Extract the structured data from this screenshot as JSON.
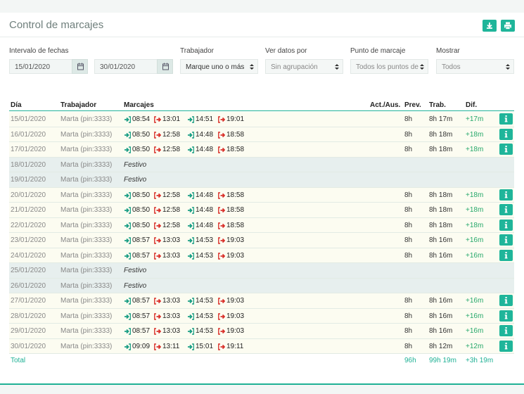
{
  "header": {
    "title": "Control de marcajes"
  },
  "filters": {
    "date_range": {
      "label": "Intervalo de fechas",
      "from": "15/01/2020",
      "to": "30/01/2020"
    },
    "selects": [
      {
        "label": "Trabajador",
        "value": "Marque uno o más"
      },
      {
        "label": "Ver datos por",
        "value": "Sin agrupación"
      },
      {
        "label": "Punto de marcaje",
        "value": "Todos los puntos de"
      },
      {
        "label": "Mostrar",
        "value": "Todos"
      }
    ]
  },
  "table": {
    "columns": [
      "Día",
      "Trabajador",
      "Marcajes",
      "Act./Aus.",
      "Prev.",
      "Trab.",
      "Dif."
    ],
    "rows": [
      {
        "date": "15/01/2020",
        "worker": "Marta (pin:3333)",
        "punches": [
          "08:54",
          "13:01",
          "14:51",
          "19:01"
        ],
        "prev": "8h",
        "trab": "8h 17m",
        "dif": "+17m"
      },
      {
        "date": "16/01/2020",
        "worker": "Marta (pin:3333)",
        "punches": [
          "08:50",
          "12:58",
          "14:48",
          "18:58"
        ],
        "prev": "8h",
        "trab": "8h 18m",
        "dif": "+18m"
      },
      {
        "date": "17/01/2020",
        "worker": "Marta (pin:3333)",
        "punches": [
          "08:50",
          "12:58",
          "14:48",
          "18:58"
        ],
        "prev": "8h",
        "trab": "8h 18m",
        "dif": "+18m"
      },
      {
        "date": "18/01/2020",
        "worker": "Marta (pin:3333)",
        "note": "Festivo"
      },
      {
        "date": "19/01/2020",
        "worker": "Marta (pin:3333)",
        "note": "Festivo"
      },
      {
        "date": "20/01/2020",
        "worker": "Marta (pin:3333)",
        "punches": [
          "08:50",
          "12:58",
          "14:48",
          "18:58"
        ],
        "prev": "8h",
        "trab": "8h 18m",
        "dif": "+18m"
      },
      {
        "date": "21/01/2020",
        "worker": "Marta (pin:3333)",
        "punches": [
          "08:50",
          "12:58",
          "14:48",
          "18:58"
        ],
        "prev": "8h",
        "trab": "8h 18m",
        "dif": "+18m"
      },
      {
        "date": "22/01/2020",
        "worker": "Marta (pin:3333)",
        "punches": [
          "08:50",
          "12:58",
          "14:48",
          "18:58"
        ],
        "prev": "8h",
        "trab": "8h 18m",
        "dif": "+18m"
      },
      {
        "date": "23/01/2020",
        "worker": "Marta (pin:3333)",
        "punches": [
          "08:57",
          "13:03",
          "14:53",
          "19:03"
        ],
        "prev": "8h",
        "trab": "8h 16m",
        "dif": "+16m"
      },
      {
        "date": "24/01/2020",
        "worker": "Marta (pin:3333)",
        "punches": [
          "08:57",
          "13:03",
          "14:53",
          "19:03"
        ],
        "prev": "8h",
        "trab": "8h 16m",
        "dif": "+16m"
      },
      {
        "date": "25/01/2020",
        "worker": "Marta (pin:3333)",
        "note": "Festivo"
      },
      {
        "date": "26/01/2020",
        "worker": "Marta (pin:3333)",
        "note": "Festivo"
      },
      {
        "date": "27/01/2020",
        "worker": "Marta (pin:3333)",
        "punches": [
          "08:57",
          "13:03",
          "14:53",
          "19:03"
        ],
        "prev": "8h",
        "trab": "8h 16m",
        "dif": "+16m"
      },
      {
        "date": "28/01/2020",
        "worker": "Marta (pin:3333)",
        "punches": [
          "08:57",
          "13:03",
          "14:53",
          "19:03"
        ],
        "prev": "8h",
        "trab": "8h 16m",
        "dif": "+16m"
      },
      {
        "date": "29/01/2020",
        "worker": "Marta (pin:3333)",
        "punches": [
          "08:57",
          "13:03",
          "14:53",
          "19:03"
        ],
        "prev": "8h",
        "trab": "8h 16m",
        "dif": "+16m"
      },
      {
        "date": "30/01/2020",
        "worker": "Marta (pin:3333)",
        "punches": [
          "09:09",
          "13:11",
          "15:01",
          "19:11"
        ],
        "prev": "8h",
        "trab": "8h 12m",
        "dif": "+12m"
      }
    ],
    "total": {
      "label": "Total",
      "prev": "96h",
      "trab": "99h 19m",
      "dif": "+3h 19m"
    }
  }
}
